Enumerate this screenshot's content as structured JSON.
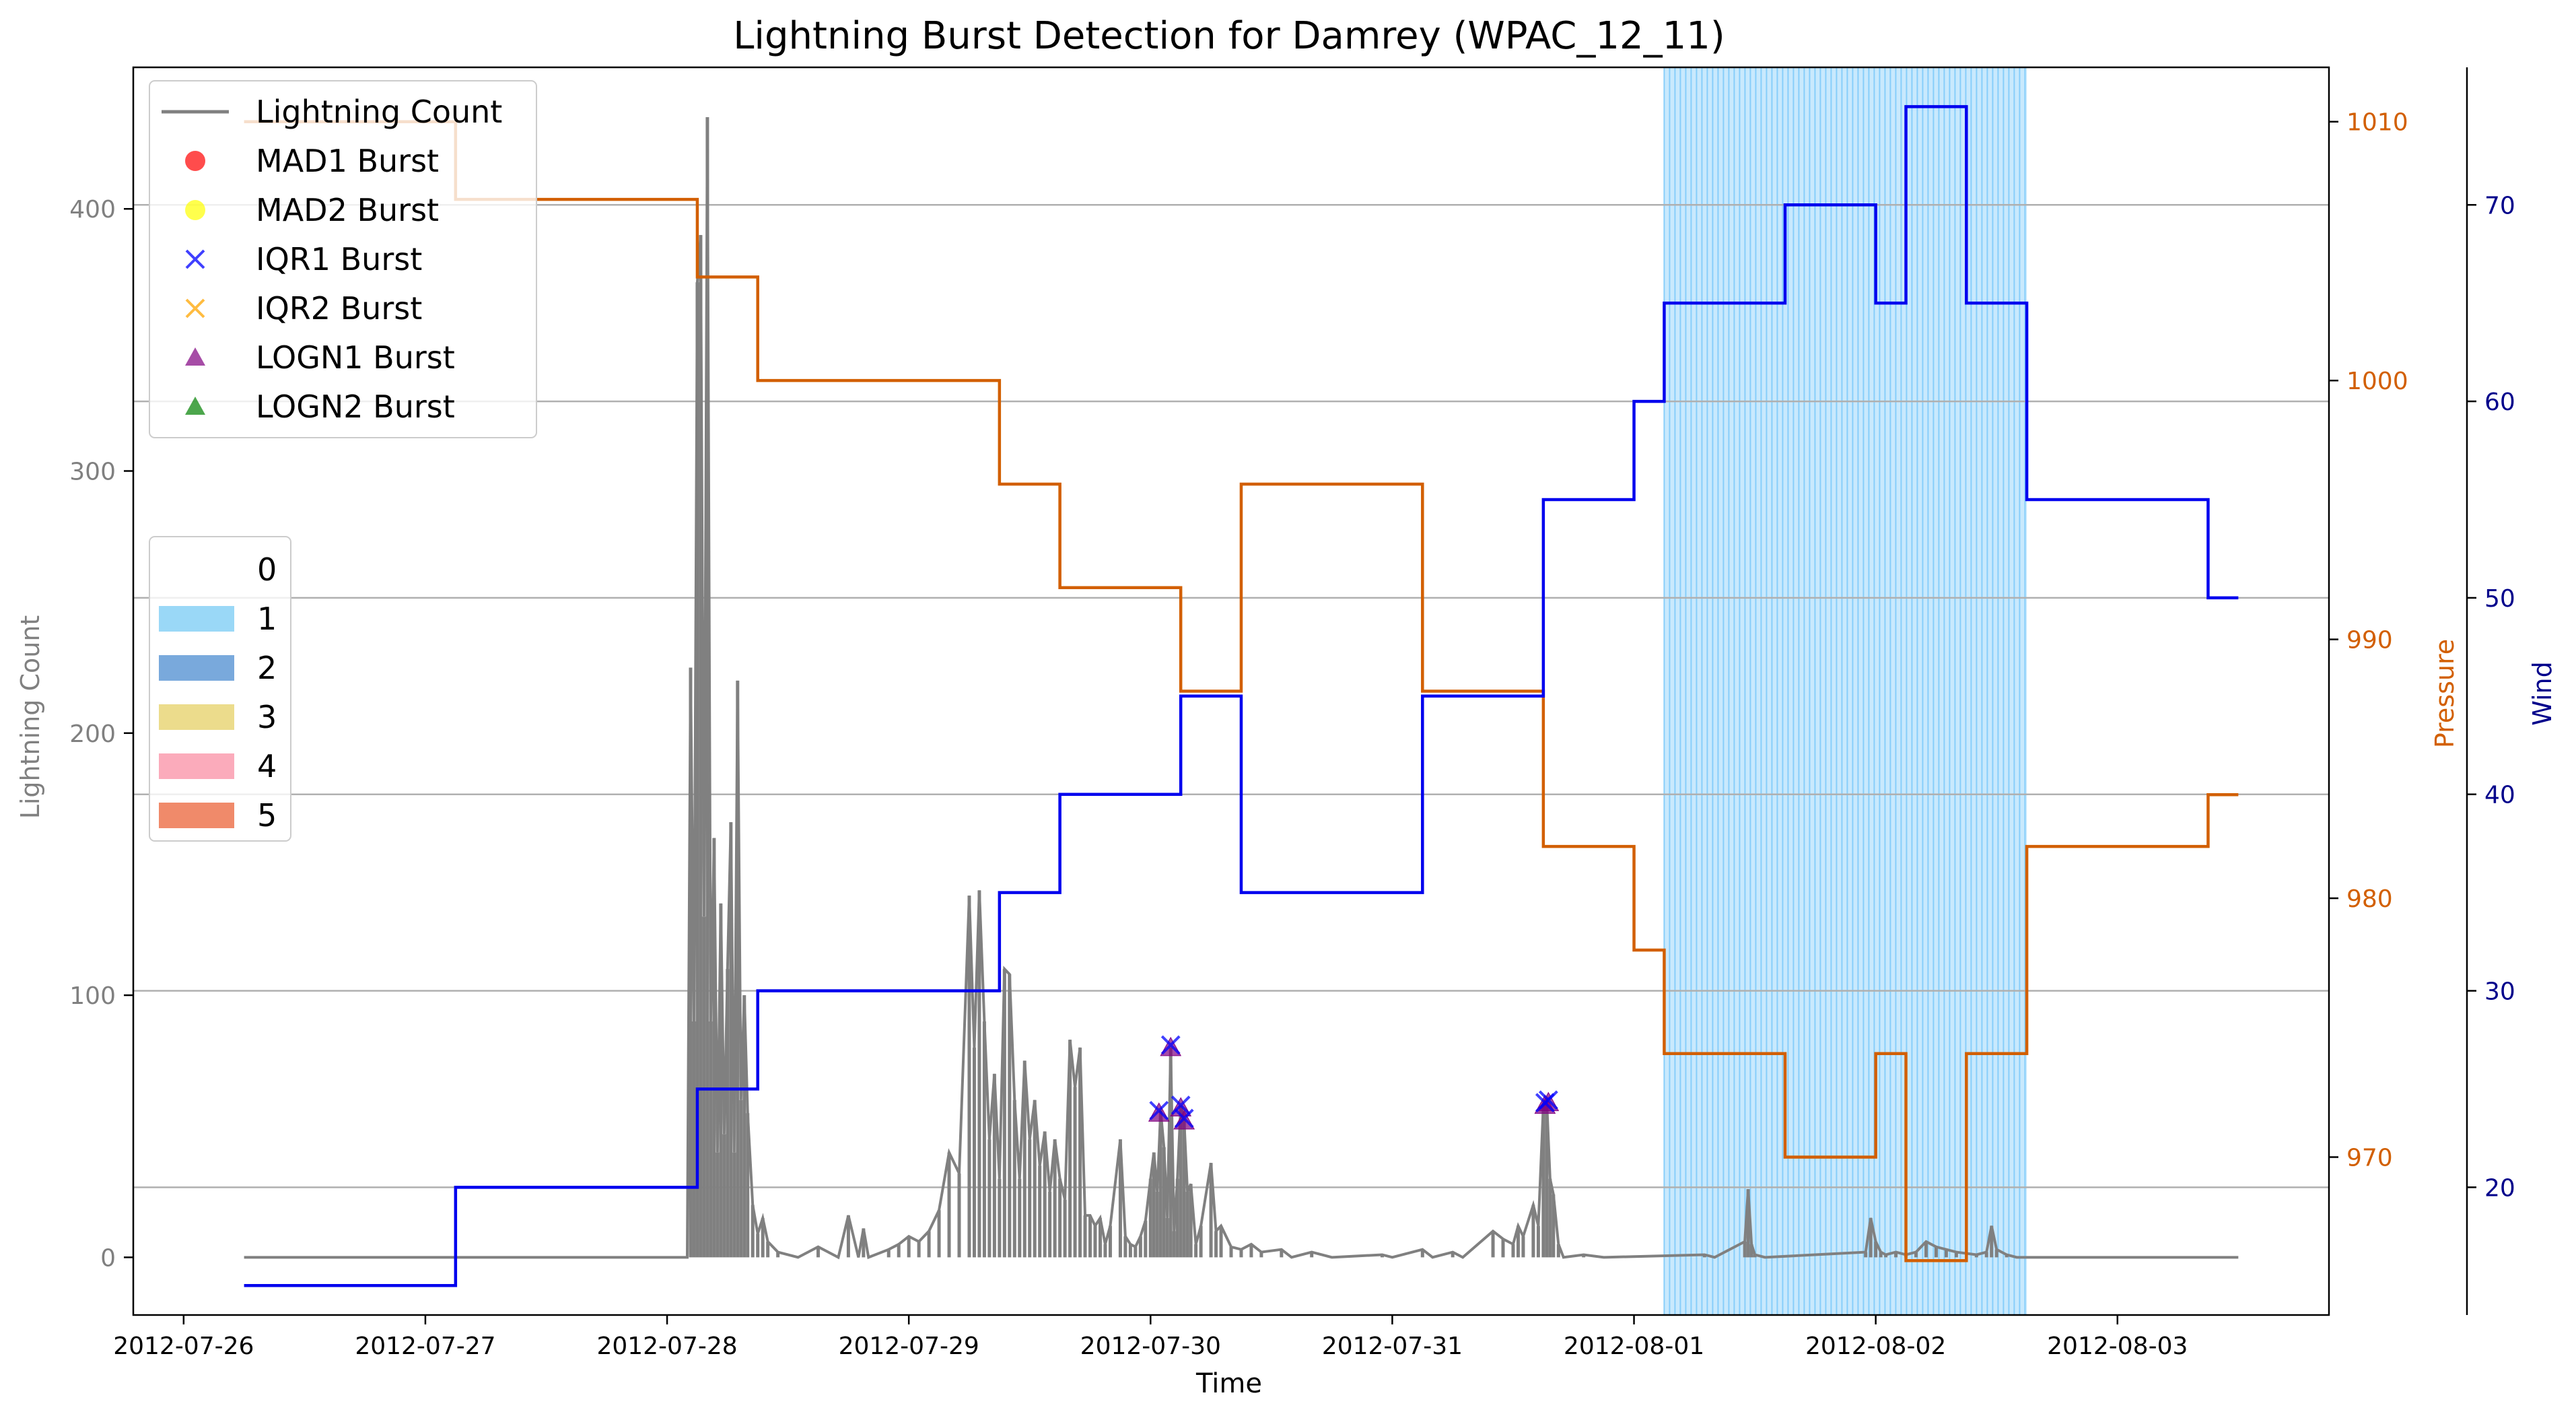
{
  "chart_data": {
    "type": "line",
    "title": "Lightning Burst Detection for Damrey (WPAC_12_11)",
    "xlabel": "Time",
    "ylabel_left": "Lightning Count",
    "ylabel_pressure": "Pressure",
    "ylabel_wind": "Wind",
    "x_range": [
      "2012-07-25T19:00",
      "2012-08-03T21:00"
    ],
    "x_ticks": [
      "2012-07-26",
      "2012-07-27",
      "2012-07-28",
      "2012-07-29",
      "2012-07-30",
      "2012-07-31",
      "2012-08-01",
      "2012-08-02",
      "2012-08-03"
    ],
    "ylim_left": [
      -22,
      454
    ],
    "yticks_left": [
      0,
      100,
      200,
      300,
      400
    ],
    "ylim_pressure": [
      963.9,
      1012.1
    ],
    "yticks_pressure": [
      970,
      980,
      990,
      1000,
      1010
    ],
    "ylim_wind": [
      13.5,
      77
    ],
    "yticks_wind": [
      20,
      30,
      40,
      50,
      60,
      70
    ],
    "grid": "horizontal at wind ticks",
    "colors": {
      "lightning": "#808080",
      "pressure": "#d25f00",
      "wind": "#0000ee",
      "wind_axis": "#00008b",
      "shade": "#87cefa",
      "mad1": "#ff0000",
      "mad2": "#ffff00",
      "iqr1": "#0000ff",
      "iqr2": "#ffa500",
      "logn1": "#800080",
      "logn2": "#008000"
    },
    "legend": {
      "placement": "upper-left",
      "entries": [
        "Lightning Count",
        "MAD1 Burst",
        "MAD2 Burst",
        "IQR1 Burst",
        "IQR2 Burst",
        "LOGN1 Burst",
        "LOGN2 Burst"
      ]
    },
    "category_legend": {
      "placement": "center-left",
      "entries": [
        {
          "label": "0",
          "color": "#ffffff"
        },
        {
          "label": "1",
          "color": "#9ad8f7"
        },
        {
          "label": "2",
          "color": "#79a9dc"
        },
        {
          "label": "3",
          "color": "#ecdc8c"
        },
        {
          "label": "4",
          "color": "#fbabbb"
        },
        {
          "label": "5",
          "color": "#f08a6a"
        }
      ]
    },
    "shaded_region": {
      "category": 1,
      "start": "2012-08-01T03:00",
      "end": "2012-08-02T15:00"
    },
    "pressure_steps": [
      {
        "t": "2012-07-26T06:00",
        "v": 1010
      },
      {
        "t": "2012-07-27T03:00",
        "v": 1007
      },
      {
        "t": "2012-07-28T03:00",
        "v": 1004
      },
      {
        "t": "2012-07-28T09:00",
        "v": 1000
      },
      {
        "t": "2012-07-29T09:00",
        "v": 996
      },
      {
        "t": "2012-07-29T15:00",
        "v": 992
      },
      {
        "t": "2012-07-30T03:00",
        "v": 988
      },
      {
        "t": "2012-07-30T09:00",
        "v": 996
      },
      {
        "t": "2012-07-31T03:00",
        "v": 988
      },
      {
        "t": "2012-07-31T15:00",
        "v": 982
      },
      {
        "t": "2012-08-01T00:00",
        "v": 978
      },
      {
        "t": "2012-08-01T03:00",
        "v": 974
      },
      {
        "t": "2012-08-01T15:00",
        "v": 970
      },
      {
        "t": "2012-08-02T00:00",
        "v": 974
      },
      {
        "t": "2012-08-02T03:00",
        "v": 966
      },
      {
        "t": "2012-08-02T09:00",
        "v": 974
      },
      {
        "t": "2012-08-02T15:00",
        "v": 982
      },
      {
        "t": "2012-08-03T09:00",
        "v": 984
      }
    ],
    "pressure_end": "2012-08-03T12:00",
    "wind_steps": [
      {
        "t": "2012-07-26T06:00",
        "v": 15
      },
      {
        "t": "2012-07-27T03:00",
        "v": 20
      },
      {
        "t": "2012-07-28T03:00",
        "v": 25
      },
      {
        "t": "2012-07-28T09:00",
        "v": 30
      },
      {
        "t": "2012-07-29T09:00",
        "v": 35
      },
      {
        "t": "2012-07-29T15:00",
        "v": 40
      },
      {
        "t": "2012-07-30T03:00",
        "v": 45
      },
      {
        "t": "2012-07-30T09:00",
        "v": 35
      },
      {
        "t": "2012-07-31T03:00",
        "v": 45
      },
      {
        "t": "2012-07-31T15:00",
        "v": 55
      },
      {
        "t": "2012-08-01T00:00",
        "v": 60
      },
      {
        "t": "2012-08-01T03:00",
        "v": 65
      },
      {
        "t": "2012-08-01T15:00",
        "v": 70
      },
      {
        "t": "2012-08-02T00:00",
        "v": 65
      },
      {
        "t": "2012-08-02T03:00",
        "v": 75
      },
      {
        "t": "2012-08-02T09:00",
        "v": 65
      },
      {
        "t": "2012-08-02T15:00",
        "v": 55
      },
      {
        "t": "2012-08-03T09:00",
        "v": 50
      }
    ],
    "wind_end": "2012-08-03T12:00",
    "lightning": [
      {
        "t": "2012-07-26T06:00",
        "v": 0
      },
      {
        "t": "2012-07-28T02:00",
        "v": 0
      },
      {
        "t": "2012-07-28T02:20",
        "v": 225
      },
      {
        "t": "2012-07-28T02:40",
        "v": 90
      },
      {
        "t": "2012-07-28T03:00",
        "v": 372
      },
      {
        "t": "2012-07-28T03:20",
        "v": 390
      },
      {
        "t": "2012-07-28T03:40",
        "v": 130
      },
      {
        "t": "2012-07-28T04:00",
        "v": 435
      },
      {
        "t": "2012-07-28T04:20",
        "v": 90
      },
      {
        "t": "2012-07-28T04:40",
        "v": 160
      },
      {
        "t": "2012-07-28T05:00",
        "v": 40
      },
      {
        "t": "2012-07-28T05:20",
        "v": 135
      },
      {
        "t": "2012-07-28T05:40",
        "v": 47
      },
      {
        "t": "2012-07-28T06:00",
        "v": 110
      },
      {
        "t": "2012-07-28T06:20",
        "v": 166
      },
      {
        "t": "2012-07-28T06:40",
        "v": 40
      },
      {
        "t": "2012-07-28T07:00",
        "v": 220
      },
      {
        "t": "2012-07-28T07:20",
        "v": 60
      },
      {
        "t": "2012-07-28T07:40",
        "v": 100
      },
      {
        "t": "2012-07-28T08:00",
        "v": 55
      },
      {
        "t": "2012-07-28T08:30",
        "v": 20
      },
      {
        "t": "2012-07-28T09:00",
        "v": 9
      },
      {
        "t": "2012-07-28T09:30",
        "v": 15
      },
      {
        "t": "2012-07-28T10:00",
        "v": 6
      },
      {
        "t": "2012-07-28T11:00",
        "v": 2
      },
      {
        "t": "2012-07-28T13:00",
        "v": 0
      },
      {
        "t": "2012-07-28T15:00",
        "v": 4
      },
      {
        "t": "2012-07-28T17:00",
        "v": 0
      },
      {
        "t": "2012-07-28T18:00",
        "v": 16
      },
      {
        "t": "2012-07-28T19:00",
        "v": 0
      },
      {
        "t": "2012-07-28T19:30",
        "v": 11
      },
      {
        "t": "2012-07-28T20:00",
        "v": 0
      },
      {
        "t": "2012-07-28T22:00",
        "v": 3
      },
      {
        "t": "2012-07-28T23:00",
        "v": 5
      },
      {
        "t": "2012-07-29T00:00",
        "v": 8
      },
      {
        "t": "2012-07-29T01:00",
        "v": 6
      },
      {
        "t": "2012-07-29T02:00",
        "v": 10
      },
      {
        "t": "2012-07-29T03:00",
        "v": 18
      },
      {
        "t": "2012-07-29T04:00",
        "v": 40
      },
      {
        "t": "2012-07-29T05:00",
        "v": 32
      },
      {
        "t": "2012-07-29T06:00",
        "v": 138
      },
      {
        "t": "2012-07-29T06:30",
        "v": 80
      },
      {
        "t": "2012-07-29T07:00",
        "v": 140
      },
      {
        "t": "2012-07-29T07:30",
        "v": 90
      },
      {
        "t": "2012-07-29T08:00",
        "v": 45
      },
      {
        "t": "2012-07-29T08:30",
        "v": 70
      },
      {
        "t": "2012-07-29T09:00",
        "v": 30
      },
      {
        "t": "2012-07-29T09:30",
        "v": 110
      },
      {
        "t": "2012-07-29T10:00",
        "v": 108
      },
      {
        "t": "2012-07-29T10:30",
        "v": 60
      },
      {
        "t": "2012-07-29T11:00",
        "v": 30
      },
      {
        "t": "2012-07-29T11:30",
        "v": 75
      },
      {
        "t": "2012-07-29T12:00",
        "v": 45
      },
      {
        "t": "2012-07-29T12:30",
        "v": 60
      },
      {
        "t": "2012-07-29T13:00",
        "v": 35
      },
      {
        "t": "2012-07-29T13:30",
        "v": 48
      },
      {
        "t": "2012-07-29T14:00",
        "v": 25
      },
      {
        "t": "2012-07-29T14:30",
        "v": 45
      },
      {
        "t": "2012-07-29T15:00",
        "v": 30
      },
      {
        "t": "2012-07-29T15:30",
        "v": 22
      },
      {
        "t": "2012-07-29T16:00",
        "v": 83
      },
      {
        "t": "2012-07-29T16:30",
        "v": 65
      },
      {
        "t": "2012-07-29T17:00",
        "v": 80
      },
      {
        "t": "2012-07-29T17:30",
        "v": 16
      },
      {
        "t": "2012-07-29T18:00",
        "v": 16
      },
      {
        "t": "2012-07-29T18:30",
        "v": 12
      },
      {
        "t": "2012-07-29T19:00",
        "v": 15
      },
      {
        "t": "2012-07-29T19:30",
        "v": 5
      },
      {
        "t": "2012-07-29T20:00",
        "v": 12
      },
      {
        "t": "2012-07-29T21:00",
        "v": 45
      },
      {
        "t": "2012-07-29T21:30",
        "v": 8
      },
      {
        "t": "2012-07-29T22:00",
        "v": 5
      },
      {
        "t": "2012-07-29T22:30",
        "v": 4
      },
      {
        "t": "2012-07-29T23:00",
        "v": 8
      },
      {
        "t": "2012-07-29T23:30",
        "v": 14
      },
      {
        "t": "2012-07-30T00:00",
        "v": 30
      },
      {
        "t": "2012-07-30T00:20",
        "v": 40
      },
      {
        "t": "2012-07-30T00:40",
        "v": 25
      },
      {
        "t": "2012-07-30T01:00",
        "v": 56
      },
      {
        "t": "2012-07-30T01:20",
        "v": 42
      },
      {
        "t": "2012-07-30T01:40",
        "v": 15
      },
      {
        "t": "2012-07-30T02:00",
        "v": 80
      },
      {
        "t": "2012-07-30T02:20",
        "v": 10
      },
      {
        "t": "2012-07-30T02:40",
        "v": 30
      },
      {
        "t": "2012-07-30T03:00",
        "v": 58
      },
      {
        "t": "2012-07-30T03:20",
        "v": 52
      },
      {
        "t": "2012-07-30T03:40",
        "v": 25
      },
      {
        "t": "2012-07-30T04:00",
        "v": 28
      },
      {
        "t": "2012-07-30T04:30",
        "v": 5
      },
      {
        "t": "2012-07-30T05:00",
        "v": 12
      },
      {
        "t": "2012-07-30T06:00",
        "v": 36
      },
      {
        "t": "2012-07-30T06:30",
        "v": 10
      },
      {
        "t": "2012-07-30T07:00",
        "v": 12
      },
      {
        "t": "2012-07-30T08:00",
        "v": 4
      },
      {
        "t": "2012-07-30T09:00",
        "v": 3
      },
      {
        "t": "2012-07-30T10:00",
        "v": 5
      },
      {
        "t": "2012-07-30T11:00",
        "v": 2
      },
      {
        "t": "2012-07-30T13:00",
        "v": 3
      },
      {
        "t": "2012-07-30T14:00",
        "v": 0
      },
      {
        "t": "2012-07-30T16:00",
        "v": 2
      },
      {
        "t": "2012-07-30T18:00",
        "v": 0
      },
      {
        "t": "2012-07-30T23:00",
        "v": 1
      },
      {
        "t": "2012-07-31T00:00",
        "v": 0
      },
      {
        "t": "2012-07-31T03:00",
        "v": 3
      },
      {
        "t": "2012-07-31T04:00",
        "v": 0
      },
      {
        "t": "2012-07-31T06:00",
        "v": 2
      },
      {
        "t": "2012-07-31T07:00",
        "v": 0
      },
      {
        "t": "2012-07-31T10:00",
        "v": 10
      },
      {
        "t": "2012-07-31T11:00",
        "v": 7
      },
      {
        "t": "2012-07-31T12:00",
        "v": 5
      },
      {
        "t": "2012-07-31T12:30",
        "v": 12
      },
      {
        "t": "2012-07-31T13:00",
        "v": 8
      },
      {
        "t": "2012-07-31T14:00",
        "v": 20
      },
      {
        "t": "2012-07-31T14:30",
        "v": 12
      },
      {
        "t": "2012-07-31T15:00",
        "v": 58
      },
      {
        "t": "2012-07-31T15:20",
        "v": 60
      },
      {
        "t": "2012-07-31T15:40",
        "v": 30
      },
      {
        "t": "2012-07-31T16:00",
        "v": 24
      },
      {
        "t": "2012-07-31T16:30",
        "v": 5
      },
      {
        "t": "2012-07-31T17:00",
        "v": 0
      },
      {
        "t": "2012-07-31T19:00",
        "v": 1
      },
      {
        "t": "2012-07-31T21:00",
        "v": 0
      },
      {
        "t": "2012-08-01T07:00",
        "v": 1
      },
      {
        "t": "2012-08-01T08:00",
        "v": 0
      },
      {
        "t": "2012-08-01T11:00",
        "v": 6
      },
      {
        "t": "2012-08-01T11:20",
        "v": 26
      },
      {
        "t": "2012-08-01T11:40",
        "v": 5
      },
      {
        "t": "2012-08-01T12:00",
        "v": 1
      },
      {
        "t": "2012-08-01T13:00",
        "v": 0
      },
      {
        "t": "2012-08-01T23:00",
        "v": 2
      },
      {
        "t": "2012-08-01T23:30",
        "v": 15
      },
      {
        "t": "2012-08-02T00:00",
        "v": 6
      },
      {
        "t": "2012-08-02T00:30",
        "v": 2
      },
      {
        "t": "2012-08-02T01:00",
        "v": 1
      },
      {
        "t": "2012-08-02T02:00",
        "v": 2
      },
      {
        "t": "2012-08-02T03:00",
        "v": 1
      },
      {
        "t": "2012-08-02T04:00",
        "v": 2
      },
      {
        "t": "2012-08-02T05:00",
        "v": 6
      },
      {
        "t": "2012-08-02T06:00",
        "v": 4
      },
      {
        "t": "2012-08-02T07:00",
        "v": 3
      },
      {
        "t": "2012-08-02T08:00",
        "v": 2
      },
      {
        "t": "2012-08-02T10:00",
        "v": 1
      },
      {
        "t": "2012-08-02T11:00",
        "v": 2
      },
      {
        "t": "2012-08-02T11:30",
        "v": 12
      },
      {
        "t": "2012-08-02T12:00",
        "v": 3
      },
      {
        "t": "2012-08-02T13:00",
        "v": 1
      },
      {
        "t": "2012-08-02T14:00",
        "v": 0
      },
      {
        "t": "2012-08-03T12:00",
        "v": 0
      }
    ],
    "bursts": {
      "iqr1": [
        {
          "t": "2012-07-30T00:50",
          "v": 56
        },
        {
          "t": "2012-07-30T02:00",
          "v": 81
        },
        {
          "t": "2012-07-30T03:00",
          "v": 58
        },
        {
          "t": "2012-07-30T03:20",
          "v": 53
        },
        {
          "t": "2012-07-31T15:10",
          "v": 59
        },
        {
          "t": "2012-07-31T15:30",
          "v": 60
        }
      ],
      "logn1": [
        {
          "t": "2012-07-30T00:50",
          "v": 55
        },
        {
          "t": "2012-07-30T02:00",
          "v": 80
        },
        {
          "t": "2012-07-30T03:00",
          "v": 57
        },
        {
          "t": "2012-07-30T03:20",
          "v": 52
        },
        {
          "t": "2012-07-31T15:10",
          "v": 58
        },
        {
          "t": "2012-07-31T15:30",
          "v": 59
        }
      ]
    }
  }
}
